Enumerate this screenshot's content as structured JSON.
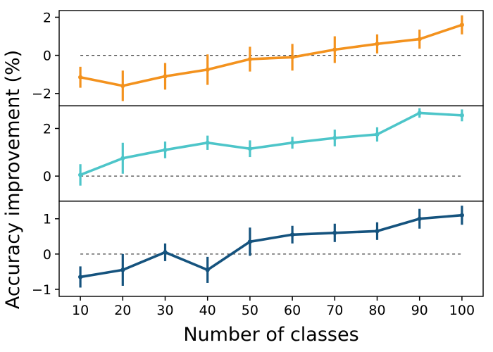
{
  "figure": {
    "xlabel": "Number of classes",
    "ylabel": "Accuracy improvement (%)",
    "background": "#ffffff",
    "axis_color": "#000000",
    "zero_line_color": "#444444",
    "xlim": [
      5,
      105
    ],
    "xticks": [
      10,
      20,
      30,
      40,
      50,
      60,
      70,
      80,
      90,
      100
    ]
  },
  "chart_data": [
    {
      "type": "line",
      "name": "top-panel-orange-series",
      "color": "#F3921E",
      "x": [
        10,
        20,
        30,
        40,
        50,
        60,
        70,
        80,
        90,
        100
      ],
      "y": [
        -1.15,
        -1.6,
        -1.1,
        -0.75,
        -0.2,
        -0.1,
        0.3,
        0.6,
        0.85,
        1.6
      ],
      "yerr": [
        0.55,
        0.8,
        0.7,
        0.8,
        0.65,
        0.7,
        0.7,
        0.5,
        0.5,
        0.5
      ],
      "ylim": [
        -2.65,
        2.35
      ],
      "yticks": [
        -2,
        0,
        2
      ],
      "zero_line": true
    },
    {
      "type": "line",
      "name": "middle-panel-cyan-series",
      "color": "#4DC5C9",
      "x": [
        10,
        20,
        30,
        40,
        50,
        60,
        70,
        80,
        90,
        100
      ],
      "y": [
        0.05,
        0.75,
        1.1,
        1.4,
        1.15,
        1.4,
        1.6,
        1.75,
        2.65,
        2.55
      ],
      "yerr": [
        0.45,
        0.65,
        0.35,
        0.3,
        0.35,
        0.25,
        0.35,
        0.3,
        0.2,
        0.25
      ],
      "ylim": [
        -1.05,
        2.95
      ],
      "yticks": [
        0,
        2
      ],
      "zero_line": true
    },
    {
      "type": "line",
      "name": "bottom-panel-darkblue-series",
      "color": "#15537E",
      "x": [
        10,
        20,
        30,
        40,
        50,
        60,
        70,
        80,
        90,
        100
      ],
      "y": [
        -0.65,
        -0.45,
        0.05,
        -0.45,
        0.35,
        0.55,
        0.6,
        0.65,
        1.0,
        1.1
      ],
      "yerr": [
        0.3,
        0.45,
        0.25,
        0.37,
        0.4,
        0.25,
        0.26,
        0.25,
        0.28,
        0.27
      ],
      "ylim": [
        -1.2,
        1.5
      ],
      "yticks": [
        -1,
        0,
        1
      ],
      "zero_line": true
    }
  ]
}
